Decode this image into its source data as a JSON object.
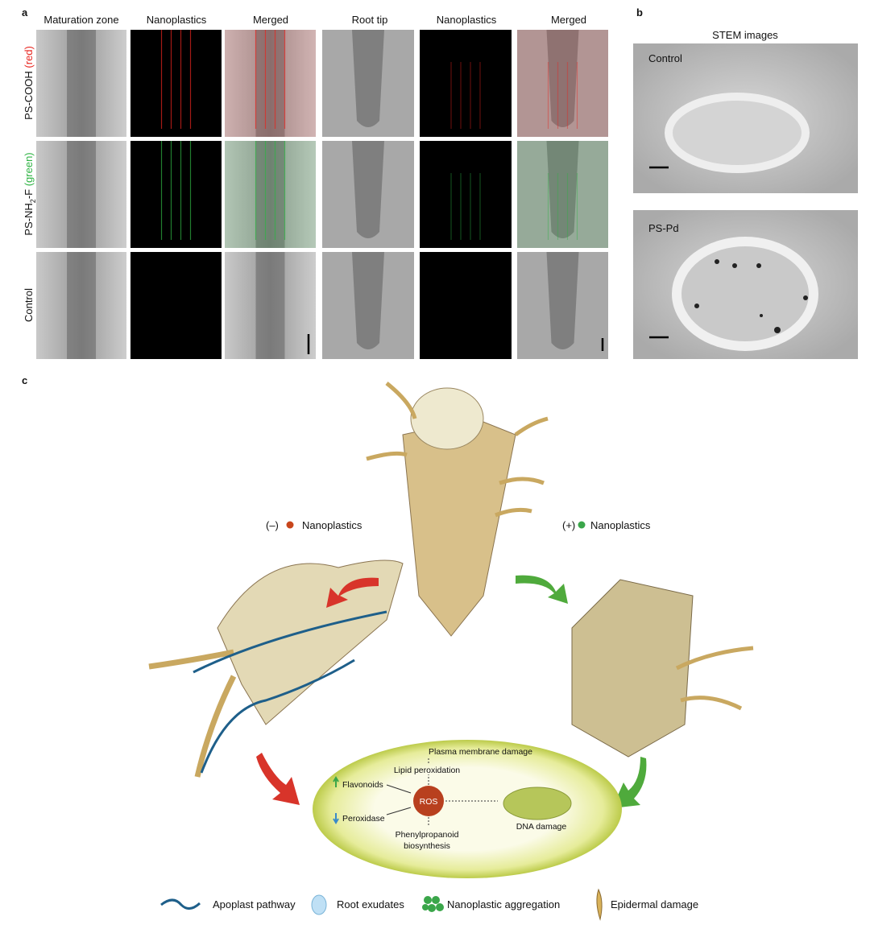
{
  "panel_a": {
    "letter": "a",
    "headers": [
      "Maturation zone",
      "Nanoplastics",
      "Merged",
      "Root tip",
      "Nanoplastics",
      "Merged"
    ],
    "rows": [
      {
        "label": [
          "PS-COOH "
        ],
        "tag": "(red)",
        "tag_color": "#e8251f"
      },
      {
        "label": [
          "PS-NH",
          "2",
          "-F "
        ],
        "tag": "(green)",
        "tag_color": "#2fb344"
      },
      {
        "label": [
          "Control"
        ]
      }
    ]
  },
  "panel_b": {
    "letter": "b",
    "title": "STEM images",
    "images": [
      "Control",
      "PS-Pd"
    ]
  },
  "panel_c": {
    "letter": "c",
    "negative": {
      "sign": "(–)",
      "label": "Nanoplastics",
      "color": "#c8461c"
    },
    "positive": {
      "sign": "(+)",
      "label": "Nanoplastics",
      "color": "#3aa64a"
    },
    "cell": {
      "membrane": "Plasma membrane damage",
      "lipid": "Lipid peroxidation",
      "flavonoids": "Flavonoids",
      "ros": "ROS",
      "peroxidase": "Peroxidase",
      "phenyl": [
        "Phenylpropanoid",
        "biosynthesis"
      ],
      "dna": "DNA damage"
    },
    "legend": [
      "Apoplast pathway",
      "Root exudates",
      "Nanoplastic aggregation",
      "Epidermal damage"
    ]
  }
}
